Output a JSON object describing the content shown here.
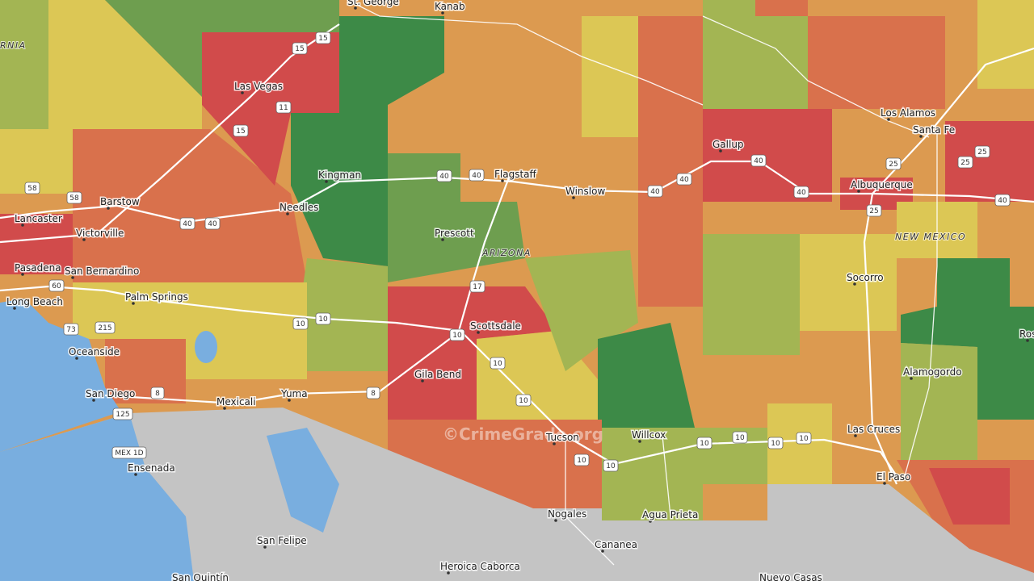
{
  "map": {
    "watermark": "©CrimeGrade.org",
    "states": [
      "ARIZONA",
      "NEW MEXICO",
      "RNIA"
    ],
    "places": [
      "St. George",
      "Kanab",
      "Las Vegas",
      "Kingman",
      "Flagstaff",
      "Winslow",
      "Gallup",
      "Los Alamos",
      "Santa Fe",
      "Albuquerque",
      "Barstow",
      "Lancaster",
      "Victorville",
      "Needles",
      "Prescott",
      "Pasadena",
      "San Bernardino",
      "Long Beach",
      "Palm Springs",
      "Scottsdale",
      "Socorro",
      "Oceanside",
      "San Diego",
      "Gila Bend",
      "Mexicali",
      "Yuma",
      "Alamogordo",
      "Tucson",
      "Willcox",
      "Las Cruces",
      "El Paso",
      "Ensenada",
      "Nogales",
      "Agua Prieta",
      "Cananea",
      "San Felipe",
      "Heroica Caborca",
      "San Quintín",
      "Nuevo Casas",
      "Ros"
    ],
    "shields": [
      "15",
      "15",
      "11",
      "15",
      "40",
      "40",
      "40",
      "40",
      "40",
      "40",
      "40",
      "25",
      "25",
      "25",
      "25",
      "58",
      "58",
      "40",
      "40",
      "17",
      "10",
      "10",
      "10",
      "10",
      "8",
      "10",
      "10",
      "10",
      "10",
      "10",
      "10",
      "10",
      "60",
      "73",
      "215",
      "125",
      "8",
      "MEX 1D"
    ]
  }
}
